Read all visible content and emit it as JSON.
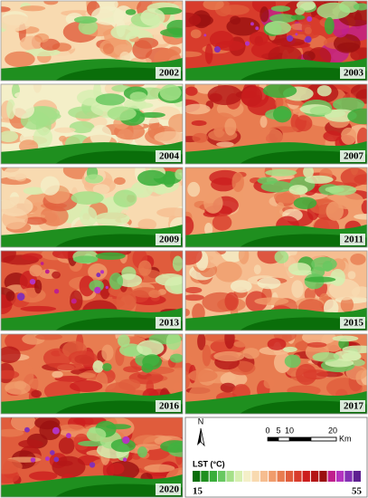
{
  "panels": [
    {
      "year": "2002"
    },
    {
      "year": "2003"
    },
    {
      "year": "2004"
    },
    {
      "year": "2007"
    },
    {
      "year": "2009"
    },
    {
      "year": "2011"
    },
    {
      "year": "2013"
    },
    {
      "year": "2015"
    },
    {
      "year": "2016"
    },
    {
      "year": "2017"
    },
    {
      "year": "2020"
    }
  ],
  "north": "N",
  "scale": {
    "labels": [
      "0",
      "5",
      "10",
      "20"
    ],
    "unit": "Km"
  },
  "legend": {
    "title": "LST (°C)",
    "min": 15,
    "max": 55,
    "colors": [
      "#0a6e0a",
      "#1f8f1f",
      "#3aae3a",
      "#68c860",
      "#a4e088",
      "#d6efb0",
      "#f4efc8",
      "#f8dab0",
      "#f6bd90",
      "#f09c6c",
      "#e87c50",
      "#e05c3c",
      "#d83c2c",
      "#cc1e1e",
      "#b41616",
      "#9a1010",
      "#c0208c",
      "#b434c0",
      "#8430b4",
      "#5e2090"
    ]
  }
}
